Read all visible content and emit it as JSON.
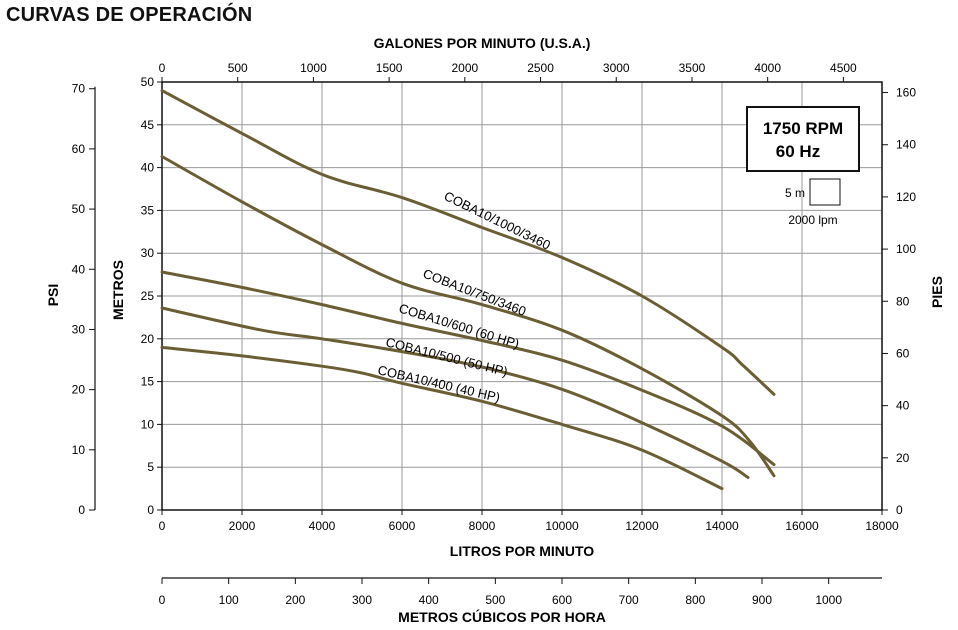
{
  "page_title": "CURVAS DE OPERACIÓN",
  "chart_data": {
    "type": "line",
    "title": "CURVAS DE OPERACIÓN",
    "x_top_label": "GALONES POR MINUTO (U.S.A.)",
    "x_bottom_label": "LITROS POR MINUTO",
    "x_m3h_label": "METROS CÚBICOS POR HORA",
    "y_left_label": "METROS",
    "y_psi_label": "PSI",
    "y_right_label": "PIES",
    "xlim": [
      0,
      18000
    ],
    "ylim": [
      0,
      50
    ],
    "x_ticks": [
      0,
      2000,
      4000,
      6000,
      8000,
      10000,
      12000,
      14000,
      16000,
      18000
    ],
    "y_ticks": [
      0,
      5,
      10,
      15,
      20,
      25,
      30,
      35,
      40,
      45,
      50
    ],
    "gpm_ticks": [
      0,
      500,
      1000,
      1500,
      2000,
      2500,
      3000,
      3500,
      4000,
      4500
    ],
    "m3h_ticks": [
      0,
      100,
      200,
      300,
      400,
      500,
      600,
      700,
      800,
      900,
      1000
    ],
    "psi_ticks": [
      0,
      10,
      20,
      30,
      40,
      50,
      60,
      70
    ],
    "feet_ticks": [
      0,
      20,
      40,
      60,
      80,
      100,
      120,
      140,
      160
    ],
    "rpm_box": [
      "1750 RPM",
      "60 Hz"
    ],
    "scale_box": {
      "height_label": "5 m",
      "width_label": "2000 lpm"
    },
    "grid": true,
    "series": [
      {
        "name": "COBA10/1000/3460",
        "x": [
          0,
          2000,
          4000,
          6000,
          8000,
          10000,
          12000,
          14000,
          14500,
          15300
        ],
        "y": [
          49,
          44,
          39.2,
          36.5,
          33,
          29.5,
          25,
          19,
          17,
          13.5
        ]
      },
      {
        "name": "COBA10/750/3460",
        "x": [
          0,
          2000,
          4000,
          6000,
          8000,
          10000,
          12000,
          14000,
          14700,
          15300
        ],
        "y": [
          41.3,
          36,
          31,
          26.5,
          24,
          21,
          16.5,
          11,
          8,
          4
        ]
      },
      {
        "name": "COBA10/600 (60 HP)",
        "x": [
          0,
          2000,
          4000,
          6000,
          8000,
          10000,
          12000,
          14000,
          15300
        ],
        "y": [
          27.8,
          26,
          24,
          21.8,
          19.8,
          17.5,
          14,
          9.8,
          5.3
        ]
      },
      {
        "name": "COBA10/500 (50 HP)",
        "x": [
          0,
          2500,
          4000,
          6000,
          8000,
          10000,
          12000,
          14000,
          14650
        ],
        "y": [
          23.6,
          21,
          20,
          18.5,
          16.7,
          14.1,
          10.2,
          5.7,
          3.8
        ]
      },
      {
        "name": "COBA10/400 (40 HP)",
        "x": [
          0,
          2000,
          4000,
          5000,
          6000,
          8000,
          10000,
          12000,
          14000
        ],
        "y": [
          19,
          18,
          16.8,
          16,
          14.8,
          12.7,
          10,
          7,
          2.5
        ]
      }
    ]
  }
}
